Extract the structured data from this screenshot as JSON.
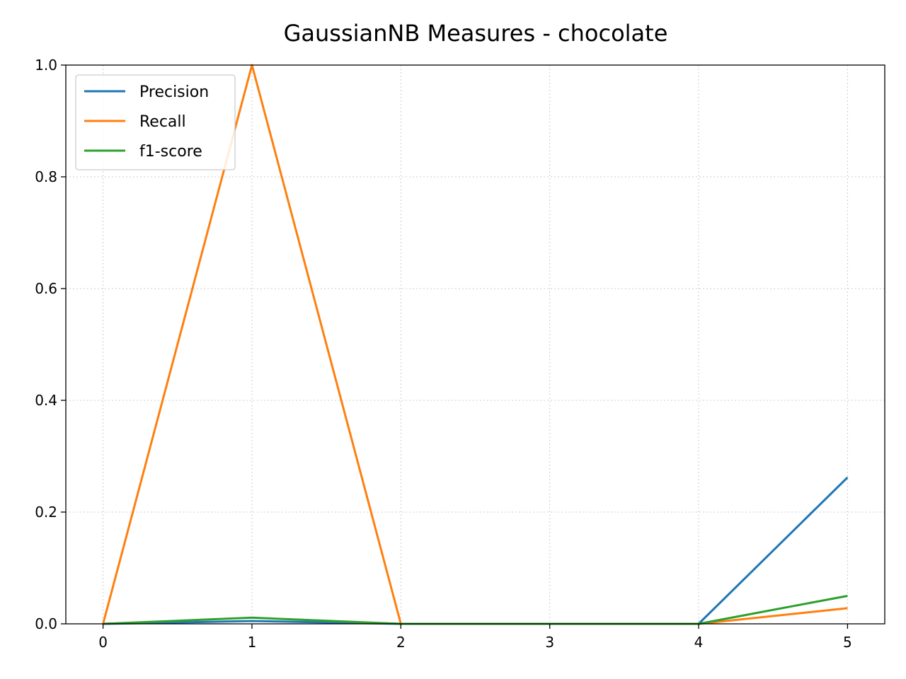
{
  "chart_data": {
    "type": "line",
    "title": "GaussianNB Measures - chocolate",
    "xlabel": "",
    "ylabel": "",
    "x": [
      0,
      1,
      2,
      3,
      4,
      5
    ],
    "xticks": [
      "0",
      "1",
      "2",
      "3",
      "4",
      "5"
    ],
    "yticks": [
      "0.0",
      "0.2",
      "0.4",
      "0.6",
      "0.8",
      "1.0"
    ],
    "xlim": [
      -0.25,
      5.25
    ],
    "ylim": [
      0,
      1
    ],
    "grid": true,
    "legend_position": "upper-left",
    "series": [
      {
        "name": "Precision",
        "color": "#1f77b4",
        "values": [
          0,
          0.005,
          0,
          0,
          0,
          0.262
        ]
      },
      {
        "name": "Recall",
        "color": "#ff7f0e",
        "values": [
          0,
          1.0,
          0,
          0,
          0,
          0.028
        ]
      },
      {
        "name": "f1-score",
        "color": "#2ca02c",
        "values": [
          0,
          0.011,
          0,
          0,
          0,
          0.05
        ]
      }
    ]
  }
}
